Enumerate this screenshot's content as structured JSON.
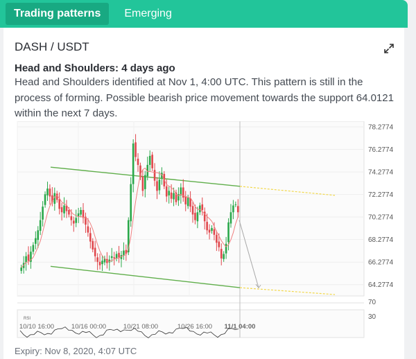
{
  "tabs": [
    {
      "label": "Trading patterns",
      "active": true
    },
    {
      "label": "Emerging",
      "active": false
    }
  ],
  "pair": "DASH / USDT",
  "pattern": {
    "title": "Head and Shoulders: 4 days ago",
    "description": "Head and Shoulders identified at Nov 1, 4:00 UTC. This pattern is still in the process of forming. Possible bearish price movement towards the support 64.0121 within the next 7 days."
  },
  "icons": {
    "expand": "expand-icon"
  },
  "colors": {
    "accent": "#22c59a",
    "accent_dark": "#18a982",
    "candle_up": "#2aa84a",
    "candle_down": "#e0474c",
    "channel": "#5fae4a",
    "projection": "#f2d84a",
    "moving_average": "#f08080"
  },
  "chart_data": {
    "type": "candlestick",
    "y_ticks": [
      "78.2774",
      "76.2774",
      "74.2774",
      "72.2774",
      "70.2774",
      "68.2774",
      "66.2774",
      "64.2774"
    ],
    "ylim": [
      63.2774,
      78.2774
    ],
    "x_ticks": [
      "10/10 16:00",
      "10/16 00:00",
      "10/21 08:00",
      "10/26 16:00",
      "11/1 04:00"
    ],
    "x_highlight": "11/1 04:00",
    "rsi_label": "RSI",
    "rsi_ticks": [
      "70",
      "30"
    ],
    "support": 64.0121,
    "closes": [
      65.8,
      66.2,
      66.8,
      66.4,
      67.2,
      67.8,
      68.4,
      69.1,
      70.0,
      71.2,
      72.3,
      72.8,
      72.1,
      71.6,
      72.4,
      71.8,
      71.0,
      70.7,
      71.3,
      70.8,
      70.5,
      70.0,
      69.7,
      70.2,
      70.6,
      70.9,
      70.2,
      69.6,
      68.9,
      68.1,
      67.4,
      66.8,
      66.3,
      66.0,
      66.4,
      66.6,
      66.2,
      66.5,
      66.8,
      66.6,
      67.0,
      66.7,
      66.9,
      67.3,
      67.0,
      70.0,
      73.2,
      76.8,
      75.6,
      74.9,
      73.8,
      72.6,
      74.0,
      74.9,
      75.7,
      74.6,
      73.5,
      72.6,
      73.6,
      74.2,
      73.0,
      72.1,
      72.6,
      71.9,
      72.4,
      71.6,
      72.3,
      72.9,
      72.0,
      71.4,
      72.0,
      71.2,
      70.5,
      70.0,
      70.7,
      71.3,
      70.9,
      69.9,
      69.1,
      68.9,
      69.3,
      68.7,
      68.0,
      67.6,
      66.6,
      67.0,
      67.9,
      69.8,
      70.7,
      71.3,
      71.4,
      70.7
    ]
  },
  "expiry": "Expiry: Nov 8, 2020, 4:07 UTC"
}
